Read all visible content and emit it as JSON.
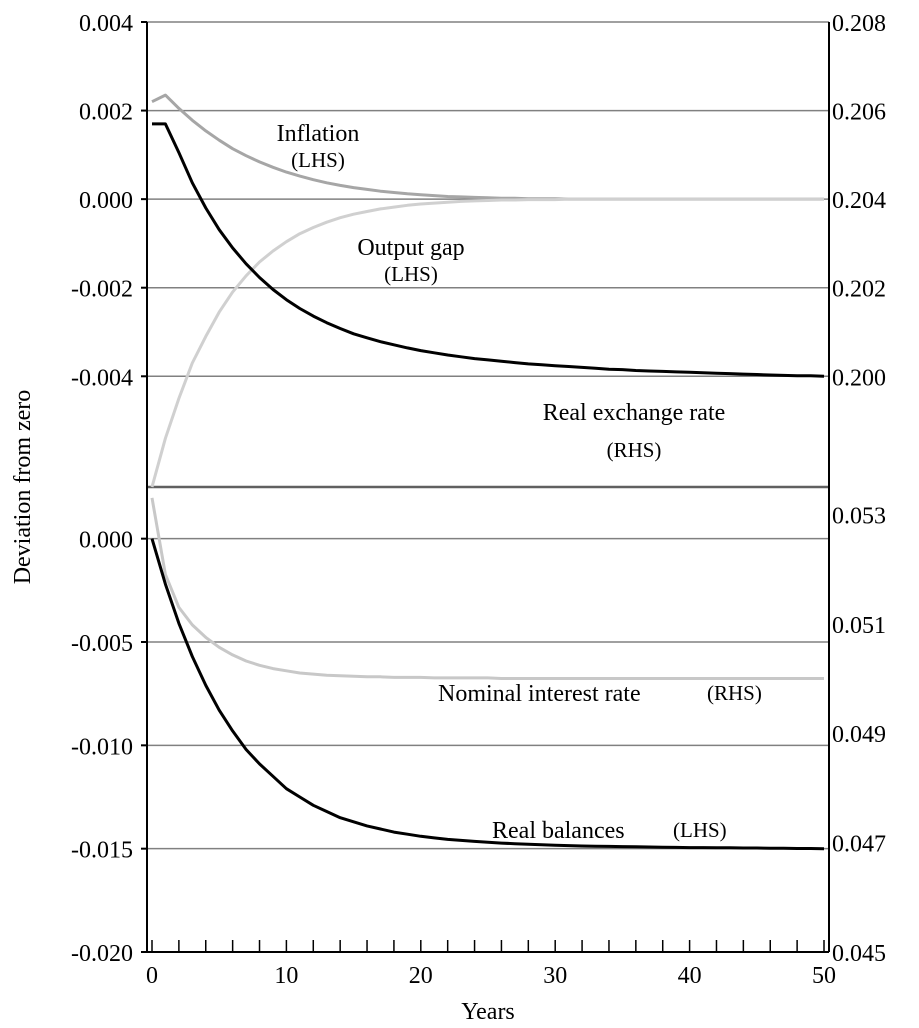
{
  "chart_data": [
    {
      "type": "line",
      "panel": "top",
      "x": [
        0,
        1,
        2,
        3,
        4,
        5,
        6,
        7,
        8,
        9,
        10,
        11,
        12,
        13,
        14,
        15,
        16,
        17,
        18,
        19,
        20,
        21,
        22,
        23,
        24,
        25,
        26,
        27,
        28,
        29,
        30,
        31,
        32,
        33,
        34,
        35,
        36,
        37,
        38,
        39,
        40,
        41,
        42,
        43,
        44,
        45,
        46,
        47,
        48,
        49,
        50
      ],
      "y_left_ticks": [
        "0.004",
        "0.002",
        "0.000",
        "-0.002",
        "-0.004"
      ],
      "y_left_range": [
        -0.0065,
        0.004
      ],
      "y_right_ticks": [
        "0.208",
        "0.206",
        "0.204",
        "0.202",
        "0.200"
      ],
      "y_right_range": [
        0.1975,
        0.208
      ],
      "grid": true,
      "series": [
        {
          "name": "Inflation",
          "annotation": [
            "Inflation",
            "(LHS)"
          ],
          "axis": "left",
          "color": "#a6a6a6",
          "y": [
            0.0022,
            0.00235,
            0.00205,
            0.00178,
            0.00154,
            0.00133,
            0.00114,
            0.00098,
            0.00084,
            0.00072,
            0.00061,
            0.00052,
            0.00044,
            0.00037,
            0.00031,
            0.00026,
            0.00022,
            0.00018,
            0.00015,
            0.00012,
            0.0001,
            8e-05,
            6e-05,
            5e-05,
            4e-05,
            3e-05,
            2e-05,
            2e-05,
            1e-05,
            1e-05,
            1e-05,
            0.0,
            0.0,
            0.0,
            0.0,
            0.0,
            0.0,
            0.0,
            0.0,
            0.0,
            0.0,
            0.0,
            0.0,
            0.0,
            0.0,
            0.0,
            0.0,
            0.0,
            0.0,
            0.0,
            0.0
          ]
        },
        {
          "name": "Output gap",
          "annotation": [
            "Output gap",
            "(LHS)"
          ],
          "axis": "left",
          "color": "#d0d0d0",
          "y": [
            -0.0065,
            -0.0054,
            -0.0045,
            -0.0037,
            -0.0031,
            -0.00255,
            -0.0021,
            -0.00173,
            -0.00142,
            -0.00117,
            -0.00096,
            -0.00078,
            -0.00064,
            -0.00052,
            -0.00042,
            -0.00034,
            -0.00028,
            -0.00022,
            -0.00018,
            -0.00014,
            -0.00011,
            -9e-05,
            -7e-05,
            -5e-05,
            -4e-05,
            -3e-05,
            -2e-05,
            -2e-05,
            -1e-05,
            -1e-05,
            -1e-05,
            0.0,
            0.0,
            0.0,
            0.0,
            0.0,
            0.0,
            0.0,
            0.0,
            0.0,
            0.0,
            0.0,
            0.0,
            0.0,
            0.0,
            0.0,
            0.0,
            0.0,
            0.0,
            0.0,
            0.0
          ]
        },
        {
          "name": "Real exchange rate",
          "annotation": [
            "Real exchange rate",
            "(RHS)"
          ],
          "axis": "right",
          "color": "#000000",
          "y": [
            0.2057,
            0.2057,
            0.20505,
            0.20437,
            0.2038,
            0.20331,
            0.2029,
            0.20254,
            0.20223,
            0.20196,
            0.20173,
            0.20153,
            0.20136,
            0.20121,
            0.20108,
            0.20096,
            0.20087,
            0.20078,
            0.20071,
            0.20064,
            0.20058,
            0.20053,
            0.20048,
            0.20044,
            0.2004,
            0.20037,
            0.20034,
            0.20031,
            0.20028,
            0.20026,
            0.20024,
            0.20022,
            0.2002,
            0.20018,
            0.20016,
            0.20015,
            0.20013,
            0.20012,
            0.20011,
            0.2001,
            0.20009,
            0.20008,
            0.20007,
            0.20006,
            0.20005,
            0.20004,
            0.20003,
            0.20002,
            0.20001,
            0.20001,
            0.2
          ]
        }
      ]
    },
    {
      "type": "line",
      "panel": "bottom",
      "x": [
        0,
        1,
        2,
        3,
        4,
        5,
        6,
        7,
        8,
        9,
        10,
        11,
        12,
        13,
        14,
        15,
        16,
        17,
        18,
        19,
        20,
        21,
        22,
        23,
        24,
        25,
        26,
        27,
        28,
        29,
        30,
        31,
        32,
        33,
        34,
        35,
        36,
        37,
        38,
        39,
        40,
        41,
        42,
        43,
        44,
        45,
        46,
        47,
        48,
        49,
        50
      ],
      "xlabel": "Years",
      "x_ticks": [
        "0",
        "10",
        "20",
        "30",
        "40",
        "50"
      ],
      "y_left_ticks": [
        "0.000",
        "-0.005",
        "-0.010",
        "-0.015",
        "-0.020"
      ],
      "y_left_range": [
        -0.02,
        0.0025
      ],
      "y_right_ticks": [
        "0.053",
        "0.051",
        "0.049",
        "0.047",
        "0.045"
      ],
      "y_right_range": [
        0.045,
        0.0535
      ],
      "grid": true,
      "series": [
        {
          "name": "Nominal interest rate",
          "annotation": [
            "Nominal interest rate",
            "(RHS)"
          ],
          "axis": "right",
          "color": "#c8c8c8",
          "y": [
            0.0533,
            0.0519,
            0.0513,
            0.05098,
            0.05075,
            0.05057,
            0.05043,
            0.05032,
            0.05024,
            0.05018,
            0.05014,
            0.0501,
            0.05008,
            0.05006,
            0.05005,
            0.05004,
            0.05003,
            0.05003,
            0.05002,
            0.05002,
            0.05002,
            0.05001,
            0.05001,
            0.05001,
            0.05001,
            0.05001,
            0.05,
            0.05,
            0.05,
            0.05,
            0.05,
            0.05,
            0.05,
            0.05,
            0.05,
            0.05,
            0.05,
            0.05,
            0.05,
            0.05,
            0.05,
            0.05,
            0.05,
            0.05,
            0.05,
            0.05,
            0.05,
            0.05,
            0.05,
            0.05,
            0.05
          ]
        },
        {
          "name": "Real balances",
          "annotation": [
            "Real balances",
            "(LHS)"
          ],
          "axis": "left",
          "color": "#000000",
          "y": [
            0.0,
            -0.0022,
            -0.0041,
            -0.0057,
            -0.0071,
            -0.0083,
            -0.0093,
            -0.0102,
            -0.0109,
            -0.0115,
            -0.0121,
            -0.0125,
            -0.0129,
            -0.0132,
            -0.0135,
            -0.0137,
            -0.0139,
            -0.01405,
            -0.0142,
            -0.0143,
            -0.0144,
            -0.01448,
            -0.01455,
            -0.0146,
            -0.01465,
            -0.01469,
            -0.01473,
            -0.01476,
            -0.01479,
            -0.01481,
            -0.01483,
            -0.01485,
            -0.01487,
            -0.01488,
            -0.01489,
            -0.0149,
            -0.01491,
            -0.01492,
            -0.01493,
            -0.01494,
            -0.01495,
            -0.01495,
            -0.01496,
            -0.01496,
            -0.01497,
            -0.01497,
            -0.01498,
            -0.01498,
            -0.01499,
            -0.01499,
            -0.015
          ]
        }
      ]
    }
  ],
  "common": {
    "ylabel": "Deviation from zero",
    "xlabel": "Years"
  },
  "colors": {
    "grid": "#808080",
    "axis": "#000000",
    "divider": "#606060"
  }
}
